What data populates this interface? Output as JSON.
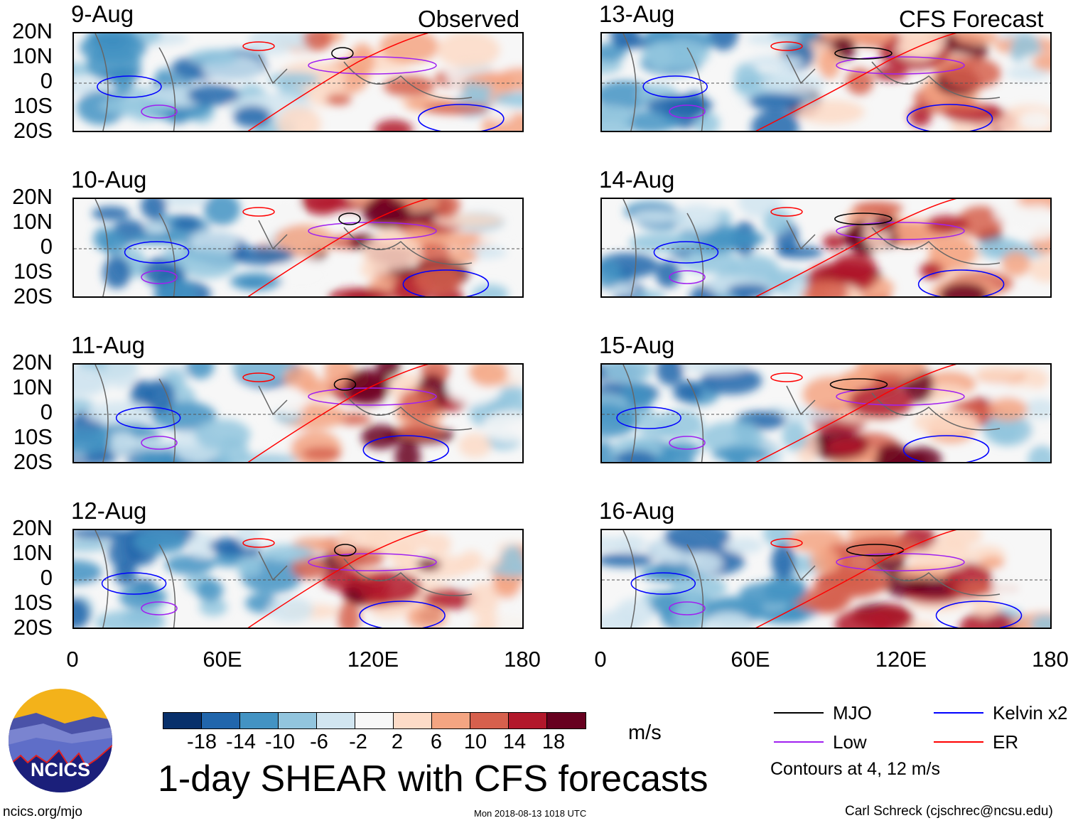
{
  "header": {
    "observed_label": "Observed",
    "forecast_label": "CFS Forecast"
  },
  "panels": [
    {
      "date": "9-Aug",
      "type": "observed"
    },
    {
      "date": "10-Aug",
      "type": "observed"
    },
    {
      "date": "11-Aug",
      "type": "observed"
    },
    {
      "date": "12-Aug",
      "type": "observed"
    },
    {
      "date": "13-Aug",
      "type": "forecast"
    },
    {
      "date": "14-Aug",
      "type": "forecast"
    },
    {
      "date": "15-Aug",
      "type": "forecast"
    },
    {
      "date": "16-Aug",
      "type": "forecast"
    }
  ],
  "y_axis_labels": [
    "20N",
    "10N",
    "0",
    "10S",
    "20S"
  ],
  "x_axis_labels": [
    "0",
    "60E",
    "120E",
    "180"
  ],
  "colorbar": {
    "colors": [
      "#08306b",
      "#2166ac",
      "#4393c3",
      "#92c5de",
      "#d1e5f0",
      "#f7f7f7",
      "#fddbc7",
      "#f4a582",
      "#d6604d",
      "#b2182b",
      "#67001f"
    ],
    "labels": [
      "-18",
      "-14",
      "-10",
      "-6",
      "-2",
      "2",
      "6",
      "10",
      "14",
      "18"
    ],
    "units": "m/s"
  },
  "legend": {
    "items": [
      {
        "label": "MJO",
        "color": "#000000"
      },
      {
        "label": "Kelvin x2",
        "color": "#0000ff"
      },
      {
        "label": "Low",
        "color": "#a020f0"
      },
      {
        "label": "ER",
        "color": "#ff0000"
      }
    ],
    "note": "Contours at 4, 12 m/s"
  },
  "footer": {
    "title": "1-day SHEAR with CFS forecasts",
    "site": "ncics.org/mjo",
    "timestamp": "Mon 2018-08-13 1018 UTC",
    "credit": "Carl Schreck (cjschrec@ncsu.edu)",
    "logo_text": "NCICS"
  }
}
